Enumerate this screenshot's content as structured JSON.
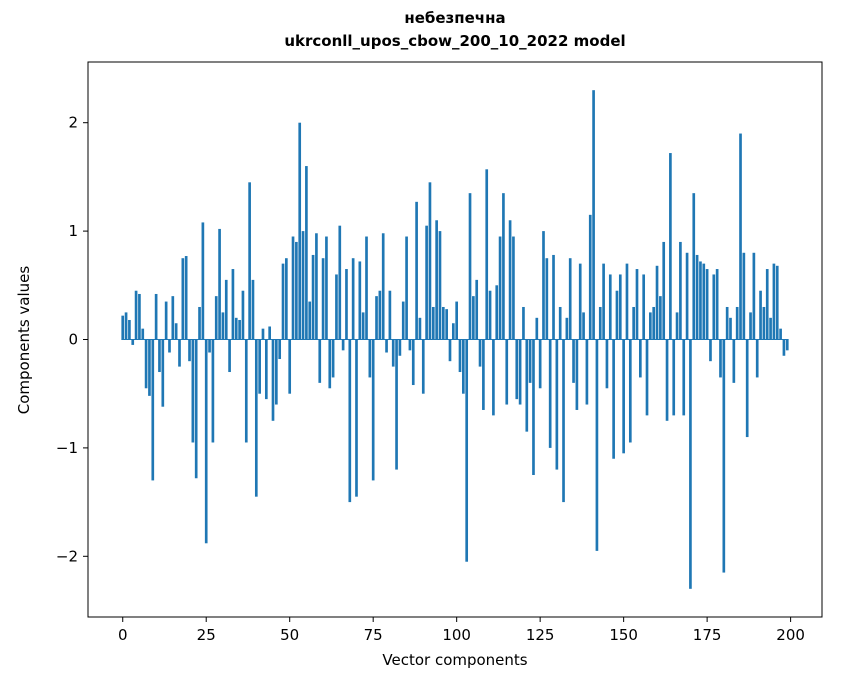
{
  "chart_data": {
    "type": "bar",
    "title": "небезпечна",
    "subtitle": "ukrconll_upos_cbow_200_10_2022 model",
    "xlabel": "Vector components",
    "ylabel": "Components values",
    "bar_color": "#1f77b4",
    "n_components": 200,
    "xlim": [
      -10.4,
      209.4
    ],
    "ylim": [
      -2.56,
      2.56
    ],
    "xticks": [
      {
        "v": 0,
        "label": "0"
      },
      {
        "v": 25,
        "label": "25"
      },
      {
        "v": 50,
        "label": "50"
      },
      {
        "v": 75,
        "label": "75"
      },
      {
        "v": 100,
        "label": "100"
      },
      {
        "v": 125,
        "label": "125"
      },
      {
        "v": 150,
        "label": "150"
      },
      {
        "v": 175,
        "label": "175"
      },
      {
        "v": 200,
        "label": "200"
      }
    ],
    "yticks": [
      {
        "v": -2,
        "label": "−2"
      },
      {
        "v": -1,
        "label": "−1"
      },
      {
        "v": 0,
        "label": "0"
      },
      {
        "v": 1,
        "label": "1"
      },
      {
        "v": 2,
        "label": "2"
      }
    ],
    "values": [
      0.22,
      0.25,
      0.18,
      -0.05,
      0.45,
      0.42,
      0.1,
      -0.45,
      -0.52,
      -1.3,
      0.42,
      -0.3,
      -0.62,
      0.35,
      -0.12,
      0.4,
      0.15,
      -0.25,
      0.75,
      0.77,
      -0.2,
      -0.95,
      -1.28,
      0.3,
      1.08,
      -1.88,
      -0.12,
      -0.95,
      0.4,
      1.02,
      0.25,
      0.55,
      -0.3,
      0.65,
      0.2,
      0.18,
      0.45,
      -0.95,
      1.45,
      0.55,
      -1.45,
      -0.5,
      0.1,
      -0.55,
      0.12,
      -0.75,
      -0.6,
      -0.18,
      0.7,
      0.75,
      -0.5,
      0.95,
      0.9,
      2.0,
      1.0,
      1.6,
      0.35,
      0.78,
      0.98,
      -0.4,
      0.75,
      0.95,
      -0.45,
      -0.35,
      0.6,
      1.05,
      -0.1,
      0.65,
      -1.5,
      0.75,
      -1.45,
      0.72,
      0.25,
      0.95,
      -0.35,
      -1.3,
      0.4,
      0.45,
      0.98,
      -0.12,
      0.45,
      -0.25,
      -1.2,
      -0.15,
      0.35,
      0.95,
      -0.1,
      -0.42,
      1.27,
      0.2,
      -0.5,
      1.05,
      1.45,
      0.3,
      1.1,
      1.0,
      0.3,
      0.28,
      -0.2,
      0.15,
      0.35,
      -0.3,
      -0.5,
      -2.05,
      1.35,
      0.4,
      0.55,
      -0.25,
      -0.65,
      1.57,
      0.45,
      -0.7,
      0.5,
      0.95,
      1.35,
      -0.6,
      1.1,
      0.95,
      -0.55,
      -0.6,
      0.3,
      -0.85,
      -0.4,
      -1.25,
      0.2,
      -0.45,
      1.0,
      0.75,
      -1.0,
      0.78,
      -1.2,
      0.3,
      -1.5,
      0.2,
      0.75,
      -0.4,
      -0.65,
      0.7,
      0.25,
      -0.6,
      1.15,
      2.3,
      -1.95,
      0.3,
      0.7,
      -0.45,
      0.6,
      -1.1,
      0.45,
      0.6,
      -1.05,
      0.7,
      -0.95,
      0.3,
      0.65,
      -0.35,
      0.6,
      -0.7,
      0.25,
      0.3,
      0.68,
      0.4,
      0.9,
      -0.75,
      1.72,
      -0.7,
      0.25,
      0.9,
      -0.7,
      0.8,
      -2.3,
      1.35,
      0.78,
      0.72,
      0.7,
      0.65,
      -0.2,
      0.6,
      0.65,
      -0.35,
      -2.15,
      0.3,
      0.2,
      -0.4,
      0.3,
      1.9,
      0.8,
      -0.9,
      0.25,
      0.8,
      -0.35,
      0.45,
      0.3,
      0.65,
      0.2,
      0.7,
      0.68,
      0.1,
      -0.15,
      -0.1
    ]
  }
}
